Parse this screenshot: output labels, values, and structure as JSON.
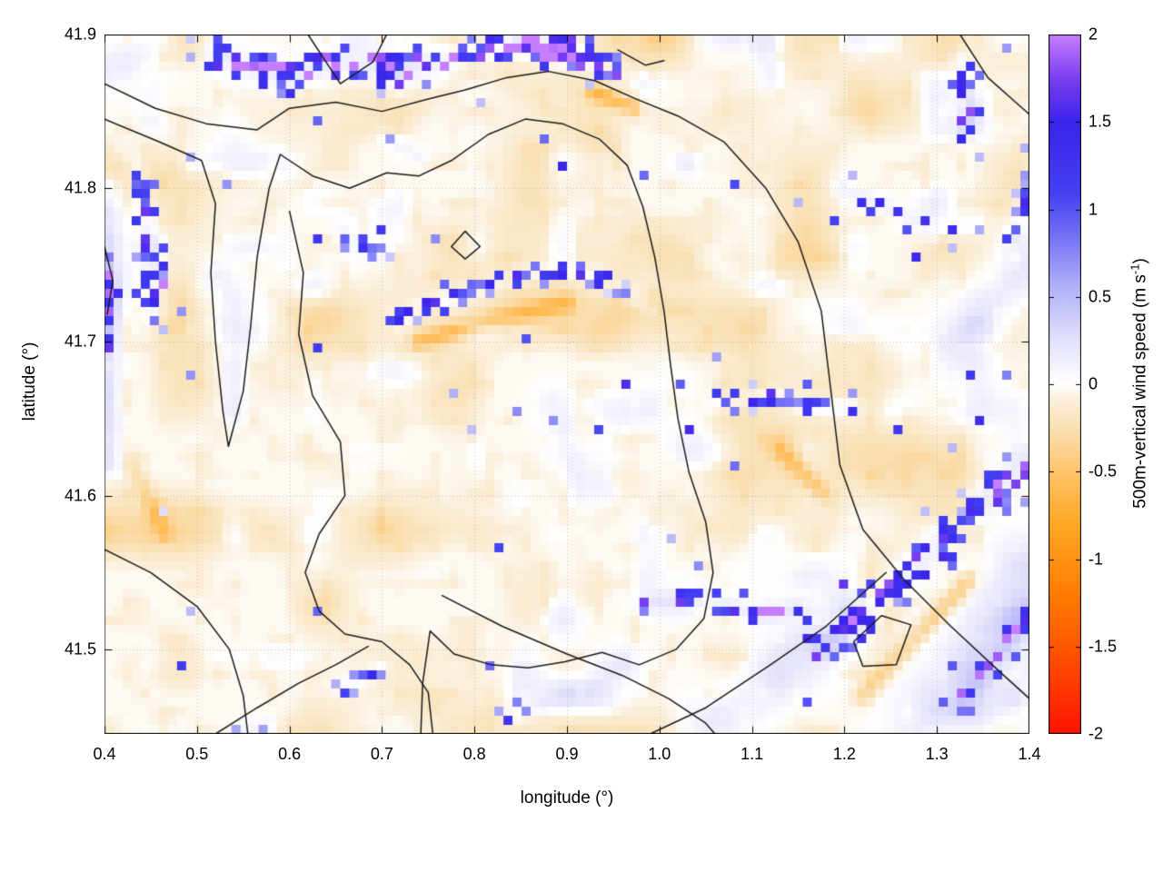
{
  "figure": {
    "background": "#ffffff"
  },
  "chart_data": {
    "type": "heatmap",
    "title": "",
    "xlabel": "longitude (°)",
    "ylabel": "latitude (°)",
    "x_range": [
      0.4,
      1.4
    ],
    "y_range": [
      41.445,
      41.9
    ],
    "x_tick_values": [
      0.4,
      0.5,
      0.6,
      0.7,
      0.8,
      0.9,
      1.0,
      1.1,
      1.2,
      1.3,
      1.4
    ],
    "x_ticks": [
      "0.4",
      "0.5",
      "0.6",
      "0.7",
      "0.8",
      "0.9",
      "1.0",
      "1.1",
      "1.2",
      "1.3",
      "1.4"
    ],
    "y_tick_values": [
      41.5,
      41.6,
      41.7,
      41.8,
      41.9
    ],
    "y_ticks": [
      "41.5",
      "41.6",
      "41.7",
      "41.8",
      "41.9"
    ],
    "grid": {
      "nx": 102,
      "ny": 77,
      "dotted_gridlines": true
    },
    "colorbar": {
      "label_pre": "500m-vertical wind speed (m s",
      "label_sup": "-1",
      "label_post": ")",
      "range": [
        -2,
        2
      ],
      "tick_values": [
        -2,
        -1.5,
        -1,
        -0.5,
        0,
        0.5,
        1,
        1.5,
        2
      ],
      "tick_labels": [
        "-2",
        "-1.5",
        "-1",
        "-0.5",
        "0",
        "0.5",
        "1",
        "1.5",
        "2"
      ],
      "stops": [
        [
          -2.0,
          "#ff1400"
        ],
        [
          -1.6,
          "#ff4a00"
        ],
        [
          -1.2,
          "#ff7d00"
        ],
        [
          -0.8,
          "#ffa726"
        ],
        [
          -0.5,
          "#ffc46a"
        ],
        [
          -0.25,
          "#f9e0b4"
        ],
        [
          -0.08,
          "#fbf0dd"
        ],
        [
          0.0,
          "#ffffff"
        ],
        [
          0.25,
          "#e2e1fa"
        ],
        [
          0.55,
          "#b3b2f8"
        ],
        [
          0.85,
          "#7472f5"
        ],
        [
          1.1,
          "#4340f2"
        ],
        [
          1.5,
          "#3a24ea"
        ],
        [
          1.75,
          "#7a3ef0"
        ],
        [
          2.0,
          "#c67eff"
        ]
      ]
    },
    "contours": {
      "color": "#1a1a1a",
      "paths": [
        [
          [
            0.4,
            41.868
          ],
          [
            0.455,
            41.852
          ],
          [
            0.51,
            41.842
          ],
          [
            0.565,
            41.838
          ],
          [
            0.6,
            41.852
          ],
          [
            0.65,
            41.856
          ],
          [
            0.7,
            41.85
          ],
          [
            0.75,
            41.858
          ],
          [
            0.79,
            41.864
          ],
          [
            0.835,
            41.872
          ],
          [
            0.88,
            41.876
          ],
          [
            0.93,
            41.87
          ],
          [
            0.975,
            41.858
          ],
          [
            1.02,
            41.847
          ],
          [
            1.07,
            41.83
          ],
          [
            1.115,
            41.8
          ],
          [
            1.15,
            41.765
          ],
          [
            1.175,
            41.72
          ],
          [
            1.185,
            41.67
          ],
          [
            1.195,
            41.62
          ],
          [
            1.22,
            41.578
          ],
          [
            1.265,
            41.545
          ],
          [
            1.315,
            41.515
          ],
          [
            1.365,
            41.487
          ],
          [
            1.4,
            41.468
          ]
        ],
        [
          [
            0.4,
            41.845
          ],
          [
            0.46,
            41.83
          ],
          [
            0.505,
            41.818
          ],
          [
            0.52,
            41.79
          ],
          [
            0.515,
            41.745
          ],
          [
            0.52,
            41.7
          ],
          [
            0.528,
            41.655
          ],
          [
            0.534,
            41.632
          ],
          [
            0.55,
            41.668
          ],
          [
            0.558,
            41.71
          ],
          [
            0.565,
            41.755
          ],
          [
            0.578,
            41.8
          ],
          [
            0.59,
            41.822
          ],
          [
            0.625,
            41.808
          ],
          [
            0.665,
            41.8
          ],
          [
            0.705,
            41.81
          ],
          [
            0.74,
            41.808
          ],
          [
            0.775,
            41.818
          ],
          [
            0.815,
            41.835
          ],
          [
            0.855,
            41.845
          ],
          [
            0.895,
            41.842
          ],
          [
            0.935,
            41.832
          ],
          [
            0.965,
            41.815
          ],
          [
            0.982,
            41.788
          ],
          [
            0.995,
            41.755
          ],
          [
            1.005,
            41.72
          ],
          [
            1.012,
            41.685
          ],
          [
            1.02,
            41.65
          ],
          [
            1.032,
            41.615
          ],
          [
            1.05,
            41.583
          ],
          [
            1.058,
            41.55
          ],
          [
            1.048,
            41.52
          ],
          [
            1.018,
            41.5
          ],
          [
            0.978,
            41.49
          ],
          [
            0.938,
            41.498
          ],
          [
            0.898,
            41.492
          ],
          [
            0.858,
            41.488
          ],
          [
            0.818,
            41.49
          ],
          [
            0.778,
            41.497
          ],
          [
            0.752,
            41.512
          ],
          [
            0.744,
            41.478
          ],
          [
            0.742,
            41.445
          ]
        ],
        [
          [
            0.62,
            41.9
          ],
          [
            0.655,
            41.868
          ],
          [
            0.69,
            41.882
          ],
          [
            0.705,
            41.9
          ]
        ],
        [
          [
            0.6,
            41.785
          ],
          [
            0.615,
            41.745
          ],
          [
            0.61,
            41.705
          ],
          [
            0.625,
            41.665
          ],
          [
            0.655,
            41.635
          ],
          [
            0.66,
            41.6
          ],
          [
            0.632,
            41.575
          ],
          [
            0.617,
            41.55
          ],
          [
            0.632,
            41.525
          ],
          [
            0.66,
            41.51
          ],
          [
            0.7,
            41.505
          ],
          [
            0.73,
            41.49
          ],
          [
            0.75,
            41.472
          ],
          [
            0.755,
            41.445
          ]
        ],
        [
          [
            0.4,
            41.565
          ],
          [
            0.45,
            41.55
          ],
          [
            0.5,
            41.528
          ],
          [
            0.535,
            41.5
          ],
          [
            0.55,
            41.47
          ],
          [
            0.555,
            41.445
          ]
        ],
        [
          [
            0.52,
            41.445
          ],
          [
            0.565,
            41.462
          ],
          [
            0.61,
            41.478
          ],
          [
            0.65,
            41.49
          ],
          [
            0.685,
            41.502
          ]
        ],
        [
          [
            0.765,
            41.535
          ],
          [
            0.83,
            41.515
          ],
          [
            0.9,
            41.497
          ],
          [
            0.96,
            41.483
          ],
          [
            1.01,
            41.468
          ],
          [
            1.05,
            41.452
          ],
          [
            1.06,
            41.445
          ]
        ],
        [
          [
            0.99,
            41.445
          ],
          [
            1.05,
            41.462
          ],
          [
            1.12,
            41.49
          ],
          [
            1.18,
            41.515
          ],
          [
            1.245,
            41.55
          ]
        ],
        [
          [
            0.775,
            41.762
          ],
          [
            0.79,
            41.772
          ],
          [
            0.806,
            41.762
          ],
          [
            0.79,
            41.754
          ],
          [
            0.775,
            41.762
          ]
        ],
        [
          [
            1.21,
            41.505
          ],
          [
            1.24,
            41.522
          ],
          [
            1.272,
            41.516
          ],
          [
            1.256,
            41.49
          ],
          [
            1.22,
            41.489
          ],
          [
            1.21,
            41.505
          ]
        ],
        [
          [
            1.325,
            41.9
          ],
          [
            1.355,
            41.872
          ],
          [
            1.385,
            41.856
          ],
          [
            1.4,
            41.848
          ]
        ],
        [
          [
            0.955,
            41.89
          ],
          [
            0.985,
            41.88
          ],
          [
            1.005,
            41.883
          ]
        ],
        [
          [
            0.4,
            41.762
          ],
          [
            0.409,
            41.74
          ],
          [
            0.403,
            41.718
          ]
        ]
      ]
    },
    "features": [
      {
        "kind": "s",
        "path": [
          [
            0.52,
            41.888
          ],
          [
            0.6,
            41.872
          ],
          [
            0.66,
            41.884
          ],
          [
            0.72,
            41.876
          ],
          [
            0.78,
            41.886
          ],
          [
            0.84,
            41.893
          ],
          [
            0.9,
            41.886
          ],
          [
            0.95,
            41.876
          ]
        ],
        "w": 0.016,
        "amp": 2.0,
        "dens": 0.55
      },
      {
        "kind": "s",
        "path": [
          [
            0.845,
            41.896
          ],
          [
            0.875,
            41.893
          ],
          [
            0.9,
            41.89
          ]
        ],
        "w": 0.011,
        "amp": 2.5,
        "dens": 0.85
      },
      {
        "kind": "s",
        "path": [
          [
            0.435,
            41.815
          ],
          [
            0.447,
            41.775
          ],
          [
            0.455,
            41.745
          ],
          [
            0.452,
            41.72
          ]
        ],
        "w": 0.011,
        "amp": 1.8,
        "dens": 0.55
      },
      {
        "kind": "s",
        "path": [
          [
            0.402,
            41.75
          ],
          [
            0.408,
            41.715
          ],
          [
            0.405,
            41.695
          ]
        ],
        "w": 0.008,
        "amp": 1.6,
        "dens": 0.5
      },
      {
        "kind": "s",
        "path": [
          [
            0.72,
            41.715
          ],
          [
            0.78,
            41.73
          ],
          [
            0.84,
            41.742
          ],
          [
            0.89,
            41.748
          ],
          [
            0.93,
            41.74
          ]
        ],
        "w": 0.012,
        "amp": 1.6,
        "dens": 0.5
      },
      {
        "kind": "s",
        "path": [
          [
            0.655,
            41.77
          ],
          [
            0.7,
            41.758
          ]
        ],
        "w": 0.009,
        "amp": 1.2,
        "dens": 0.4
      },
      {
        "kind": "s",
        "path": [
          [
            1.06,
            41.66
          ],
          [
            1.12,
            41.665
          ],
          [
            1.17,
            41.655
          ],
          [
            1.21,
            41.66
          ]
        ],
        "w": 0.011,
        "amp": 1.6,
        "dens": 0.45
      },
      {
        "kind": "s",
        "path": [
          [
            1.18,
            41.5
          ],
          [
            1.24,
            41.535
          ],
          [
            1.3,
            41.565
          ],
          [
            1.35,
            41.595
          ],
          [
            1.4,
            41.625
          ]
        ],
        "w": 0.016,
        "amp": 1.8,
        "dens": 0.5
      },
      {
        "kind": "s",
        "path": [
          [
            0.99,
            41.53
          ],
          [
            1.05,
            41.535
          ],
          [
            1.1,
            41.522
          ],
          [
            1.15,
            41.527
          ]
        ],
        "w": 0.011,
        "amp": 1.9,
        "dens": 0.55
      },
      {
        "kind": "s",
        "path": [
          [
            1.33,
            41.468
          ],
          [
            1.37,
            41.498
          ],
          [
            1.4,
            41.525
          ]
        ],
        "w": 0.012,
        "amp": 1.6,
        "dens": 0.45
      },
      {
        "kind": "s",
        "path": [
          [
            1.325,
            41.885
          ],
          [
            1.336,
            41.855
          ],
          [
            1.33,
            41.835
          ]
        ],
        "w": 0.009,
        "amp": 1.8,
        "dens": 0.55
      },
      {
        "kind": "s",
        "path": [
          [
            1.2,
            41.8
          ],
          [
            1.25,
            41.786
          ],
          [
            1.3,
            41.77
          ],
          [
            1.34,
            41.776
          ]
        ],
        "w": 0.011,
        "amp": 1.4,
        "dens": 0.32
      },
      {
        "kind": "s",
        "path": [
          [
            0.7,
            41.835
          ],
          [
            0.74,
            41.82
          ]
        ],
        "w": 0.009,
        "amp": 1.2,
        "dens": 0.3
      },
      {
        "kind": "s",
        "path": [
          [
            0.84,
            41.455
          ],
          [
            0.875,
            41.462
          ]
        ],
        "w": 0.009,
        "amp": 1.3,
        "dens": 0.4
      },
      {
        "kind": "s",
        "path": [
          [
            0.955,
            41.735
          ],
          [
            0.99,
            41.72
          ]
        ],
        "w": 0.008,
        "amp": 1.1,
        "dens": 0.25
      },
      {
        "kind": "s",
        "path": [
          [
            0.66,
            41.475
          ],
          [
            0.7,
            41.488
          ]
        ],
        "w": 0.01,
        "amp": 1.4,
        "dens": 0.4
      },
      {
        "kind": "s",
        "path": [
          [
            0.555,
            41.448
          ],
          [
            0.58,
            41.452
          ]
        ],
        "w": 0.008,
        "amp": 1.3,
        "dens": 0.45
      },
      {
        "kind": "s",
        "path": [
          [
            1.385,
            41.77
          ],
          [
            1.4,
            41.8
          ]
        ],
        "w": 0.009,
        "amp": 1.5,
        "dens": 0.5
      },
      {
        "kind": "w",
        "path": [
          [
            1.3,
            41.45
          ],
          [
            1.36,
            41.5
          ],
          [
            1.4,
            41.545
          ]
        ],
        "w": 0.045,
        "amp": 0.42
      },
      {
        "kind": "w",
        "path": [
          [
            1.05,
            41.45
          ],
          [
            1.12,
            41.48
          ],
          [
            1.2,
            41.52
          ]
        ],
        "w": 0.035,
        "amp": 0.33
      },
      {
        "kind": "w",
        "path": [
          [
            1.32,
            41.7
          ],
          [
            1.37,
            41.73
          ],
          [
            1.4,
            41.75
          ]
        ],
        "w": 0.028,
        "amp": 0.28
      },
      {
        "kind": "w",
        "path": [
          [
            0.52,
            41.74
          ],
          [
            0.55,
            41.7
          ]
        ],
        "w": 0.025,
        "amp": 0.22
      },
      {
        "kind": "w",
        "path": [
          [
            0.885,
            41.66
          ],
          [
            0.92,
            41.6
          ]
        ],
        "w": 0.02,
        "amp": 0.2
      },
      {
        "kind": "w",
        "path": [
          [
            0.4,
            41.88
          ],
          [
            0.46,
            41.896
          ]
        ],
        "w": 0.025,
        "amp": 0.28
      },
      {
        "kind": "w",
        "path": [
          [
            0.405,
            41.8
          ],
          [
            0.405,
            41.62
          ]
        ],
        "w": 0.012,
        "amp": 0.3
      },
      {
        "kind": "w",
        "path": [
          [
            0.9,
            41.47
          ],
          [
            0.96,
            41.49
          ]
        ],
        "w": 0.02,
        "amp": 0.25
      },
      {
        "kind": "w",
        "path": [
          [
            0.74,
            41.7
          ],
          [
            0.82,
            41.715
          ],
          [
            0.9,
            41.725
          ]
        ],
        "w": 0.01,
        "amp": -0.45
      },
      {
        "kind": "w",
        "path": [
          [
            0.93,
            41.862
          ],
          [
            0.97,
            41.853
          ]
        ],
        "w": 0.009,
        "amp": -0.5
      },
      {
        "kind": "w",
        "path": [
          [
            1.13,
            41.63
          ],
          [
            1.18,
            41.6
          ]
        ],
        "w": 0.01,
        "amp": -0.35
      },
      {
        "kind": "w",
        "path": [
          [
            1.22,
            41.47
          ],
          [
            1.28,
            41.51
          ],
          [
            1.335,
            41.545
          ]
        ],
        "w": 0.01,
        "amp": -0.4
      },
      {
        "kind": "w",
        "path": [
          [
            0.43,
            41.62
          ],
          [
            0.465,
            41.575
          ]
        ],
        "w": 0.01,
        "amp": -0.3
      }
    ]
  }
}
